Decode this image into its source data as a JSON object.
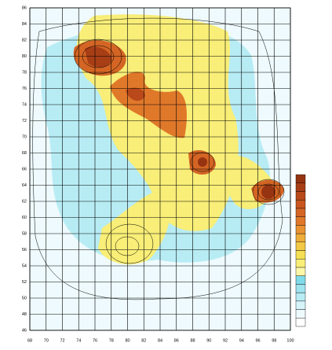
{
  "chart_data": {
    "type": "contour",
    "xlim": [
      68,
      100
    ],
    "ylim": [
      46,
      86
    ],
    "xticks": [
      68,
      70,
      72,
      74,
      76,
      78,
      80,
      82,
      84,
      86,
      88,
      90,
      92,
      94,
      96,
      98,
      100
    ],
    "yticks": [
      46,
      48,
      50,
      52,
      54,
      56,
      58,
      60,
      62,
      64,
      66,
      68,
      70,
      72,
      74,
      76,
      78,
      80,
      82,
      84,
      86
    ],
    "grid": true,
    "colorbar": [
      "#ffffff",
      "#eefafd",
      "#d6f4f9",
      "#b8ecf4",
      "#9ee4ef",
      "#7fdbe9",
      "#fbf7a8",
      "#f8ee78",
      "#f4df55",
      "#f2c845",
      "#eeac3a",
      "#ea9132",
      "#e0782a",
      "#d46524",
      "#c8561e",
      "#b9491a",
      "#a83e16",
      "#963412"
    ]
  }
}
